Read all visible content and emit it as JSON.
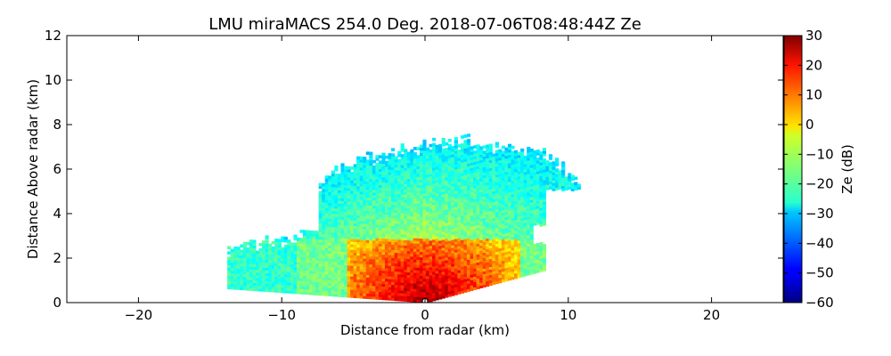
{
  "chart_data": {
    "type": "heatmap",
    "title": "LMU miraMACS 254.0 Deg. 2018-07-06T08:48:44Z  Ze",
    "xlabel": "Distance from radar (km)",
    "ylabel": "Distance Above radar  (km)",
    "xlim": [
      -25,
      25
    ],
    "ylim": [
      0,
      12
    ],
    "x_ticks": [
      -20,
      -10,
      0,
      10,
      20
    ],
    "y_ticks": [
      0,
      2,
      4,
      6,
      8,
      10,
      12
    ],
    "grid": false,
    "colormap": "jet",
    "colorbar": {
      "label": "Ze (dB)",
      "range": [
        -60,
        30
      ],
      "ticks": [
        30,
        20,
        10,
        0,
        -10,
        -20,
        -30,
        -40,
        -50,
        -60
      ]
    },
    "echo": {
      "extent_x_km": [
        -13.8,
        10.8
      ],
      "top_height_km": [
        2.4,
        7.5
      ],
      "upper_layer_dBZ": [
        -30,
        -15
      ],
      "core_x_km": [
        -5.5,
        6.5
      ],
      "core_top_km": 2.8,
      "core_dBZ": [
        10,
        28
      ]
    }
  }
}
